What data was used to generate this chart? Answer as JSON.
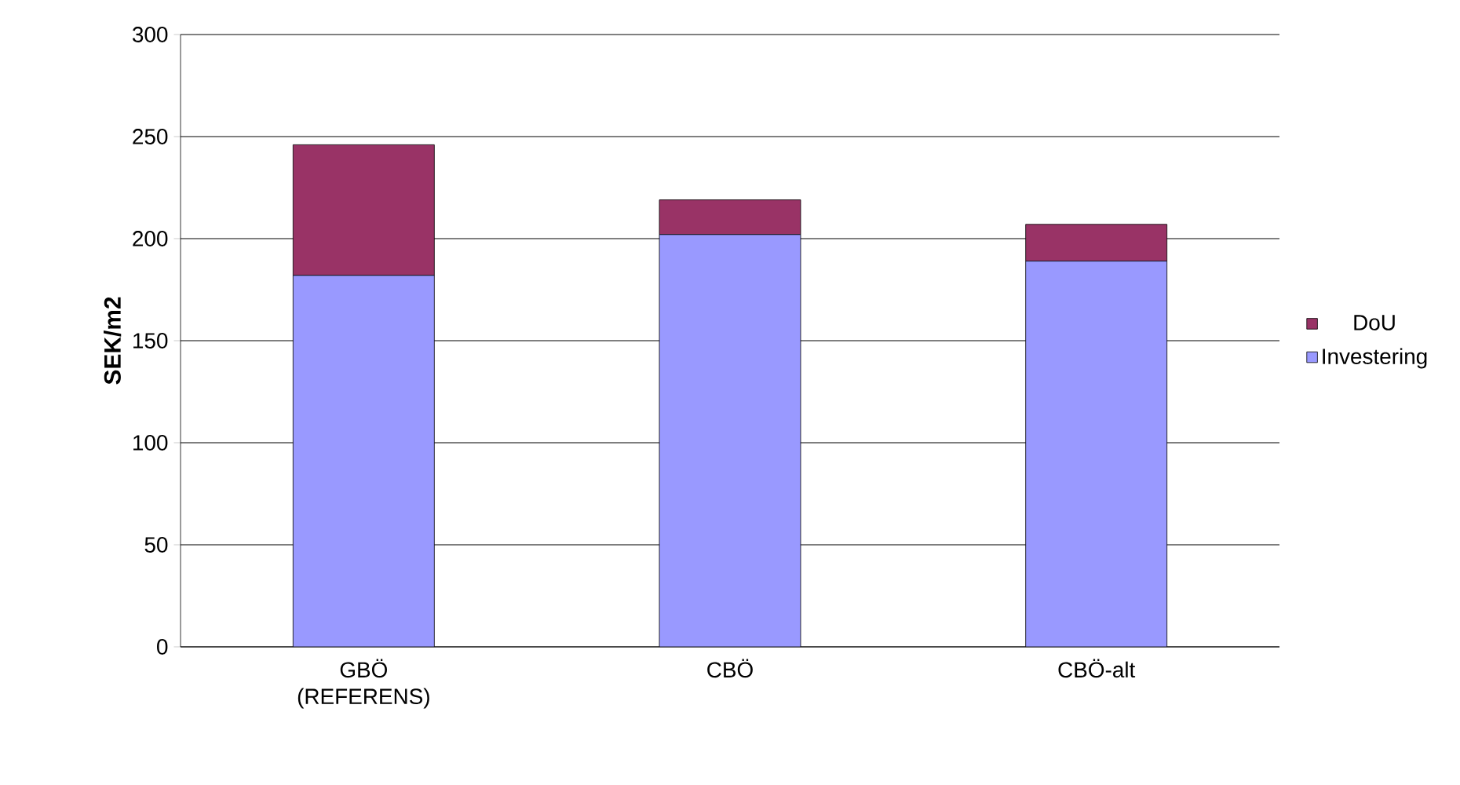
{
  "chart_data": {
    "type": "bar",
    "stacked": true,
    "ylabel": "SEK/m2",
    "categories": [
      "GBÖ (REFERENS)",
      "CBÖ",
      "CBÖ-alt"
    ],
    "series": [
      {
        "name": "Investering",
        "color": "#9999ff",
        "values": [
          182,
          202,
          189
        ]
      },
      {
        "name": "DoU",
        "color": "#993366",
        "values": [
          64,
          17,
          18
        ]
      }
    ],
    "ylim": [
      0,
      300
    ],
    "yticks": [
      0,
      50,
      100,
      150,
      200,
      250,
      300
    ],
    "grid": "y",
    "legend": "right"
  }
}
